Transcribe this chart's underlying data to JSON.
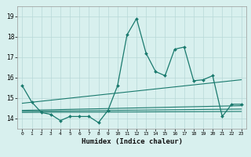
{
  "x": [
    0,
    1,
    2,
    3,
    4,
    5,
    6,
    7,
    8,
    9,
    10,
    11,
    12,
    13,
    14,
    15,
    16,
    17,
    18,
    19,
    20,
    21,
    22,
    23
  ],
  "main_line": [
    15.6,
    14.8,
    14.3,
    14.2,
    13.9,
    14.1,
    14.1,
    14.1,
    13.8,
    14.4,
    15.6,
    18.1,
    18.9,
    17.2,
    16.3,
    16.1,
    17.4,
    17.5,
    15.85,
    15.9,
    16.1,
    14.1,
    14.7,
    14.7
  ],
  "trend_line1": [
    14.75,
    14.8,
    14.85,
    14.9,
    14.95,
    15.0,
    15.05,
    15.1,
    15.15,
    15.2,
    15.25,
    15.3,
    15.35,
    15.4,
    15.45,
    15.5,
    15.55,
    15.6,
    15.65,
    15.7,
    15.75,
    15.8,
    15.85,
    15.9
  ],
  "flat_line1": [
    14.4,
    14.41,
    14.42,
    14.43,
    14.44,
    14.45,
    14.46,
    14.47,
    14.48,
    14.49,
    14.5,
    14.51,
    14.52,
    14.53,
    14.54,
    14.55,
    14.56,
    14.57,
    14.58,
    14.59,
    14.6,
    14.61,
    14.62,
    14.63
  ],
  "flat_line2": [
    14.35,
    14.355,
    14.36,
    14.365,
    14.37,
    14.375,
    14.38,
    14.385,
    14.39,
    14.395,
    14.4,
    14.405,
    14.41,
    14.415,
    14.42,
    14.425,
    14.43,
    14.435,
    14.44,
    14.445,
    14.45,
    14.455,
    14.46,
    14.465
  ],
  "flat_line3": [
    14.3,
    14.302,
    14.304,
    14.306,
    14.308,
    14.31,
    14.312,
    14.314,
    14.316,
    14.318,
    14.32,
    14.322,
    14.324,
    14.326,
    14.328,
    14.33,
    14.332,
    14.334,
    14.336,
    14.338,
    14.34,
    14.342,
    14.344,
    14.346
  ],
  "line_color": "#1a7a6e",
  "bg_color": "#d8f0ee",
  "grid_color": "#b8d8d8",
  "xlabel": "Humidex (Indice chaleur)",
  "ylim": [
    13.5,
    19.5
  ],
  "xlim": [
    -0.5,
    23.5
  ],
  "yticks": [
    14,
    15,
    16,
    17,
    18,
    19
  ],
  "xticks": [
    0,
    1,
    2,
    3,
    4,
    5,
    6,
    7,
    8,
    9,
    10,
    11,
    12,
    13,
    14,
    15,
    16,
    17,
    18,
    19,
    20,
    21,
    22,
    23
  ],
  "xlabels": [
    "0",
    "1",
    "2",
    "3",
    "4",
    "5",
    "6",
    "7",
    "8",
    "9",
    "10",
    "11",
    "12",
    "13",
    "14",
    "15",
    "16",
    "17",
    "18",
    "19",
    "20",
    "21",
    "22",
    "23"
  ]
}
